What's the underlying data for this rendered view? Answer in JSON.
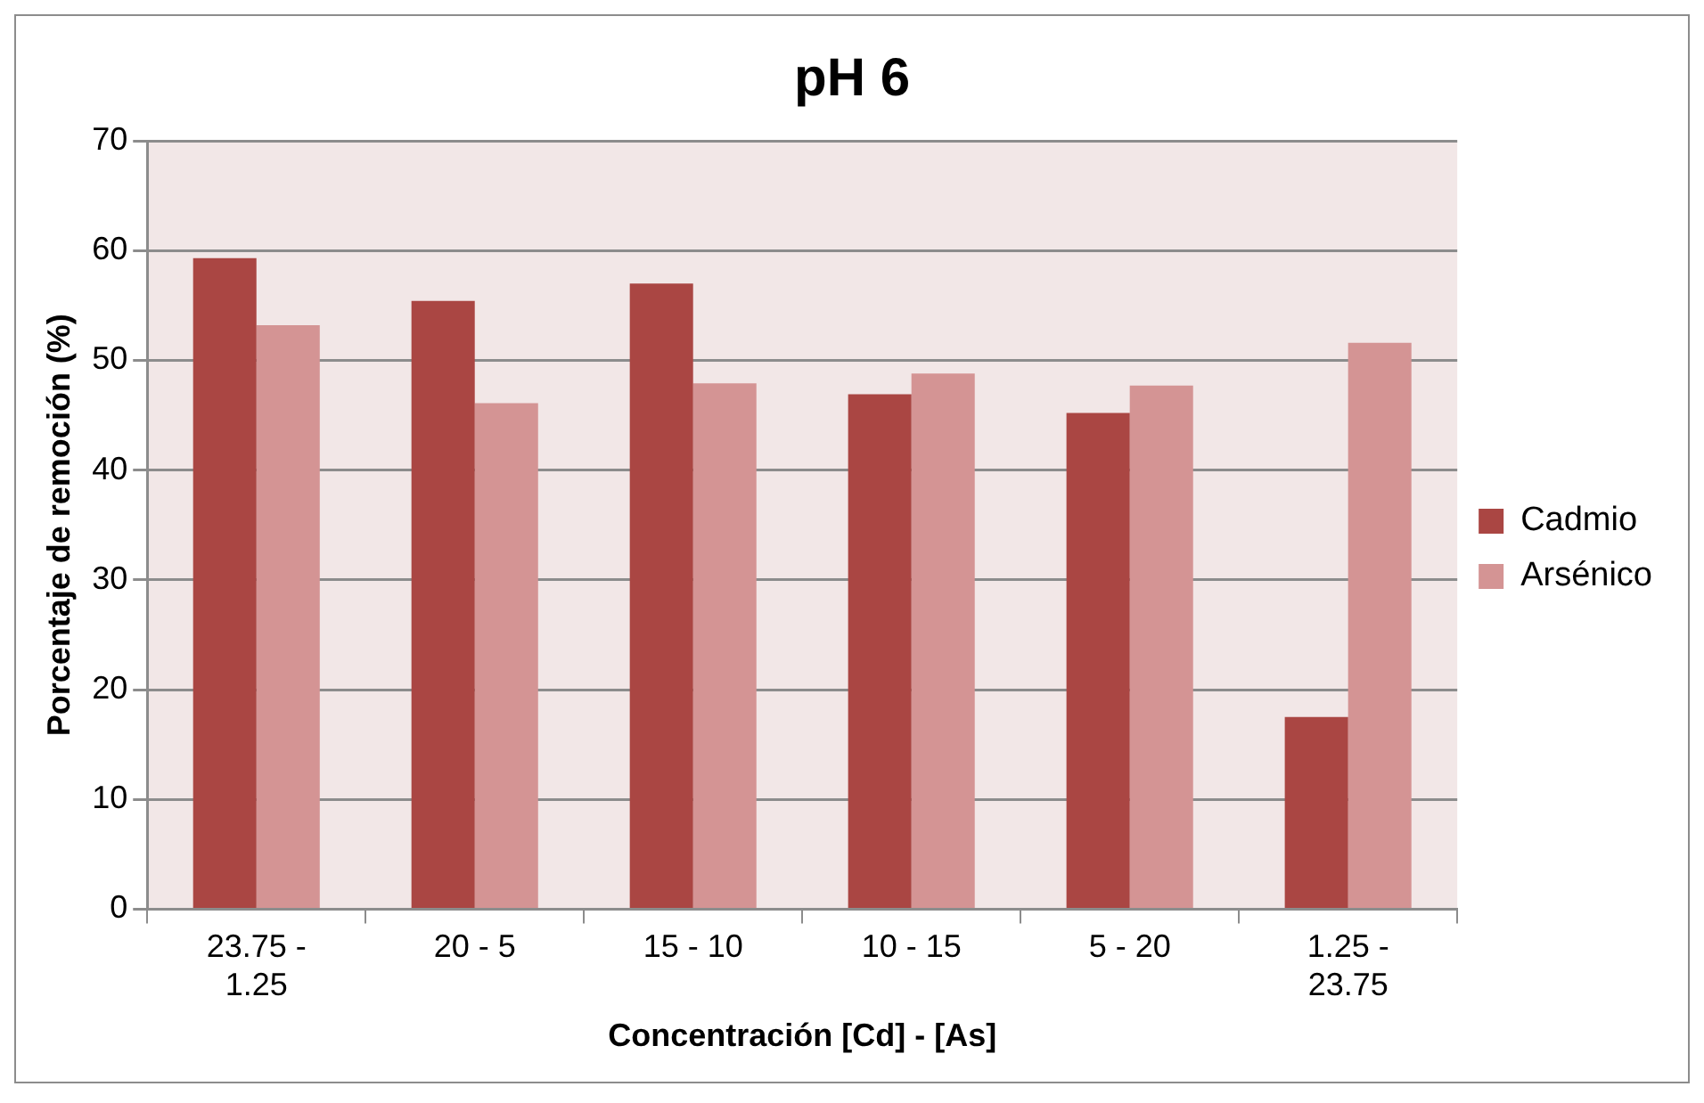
{
  "chart_data": {
    "type": "bar",
    "title": "pH 6",
    "xlabel": "Concentración [Cd] - [As]",
    "ylabel": "Porcentaje de remoción (%)",
    "categories": [
      "23.75 - 1.25",
      "20 - 5",
      "15 - 10",
      "10 - 15",
      "5 - 20",
      "1.25 - 23.75"
    ],
    "series": [
      {
        "name": "Cadmio",
        "color": "#aa4643",
        "values": [
          59.3,
          55.4,
          57.0,
          46.9,
          45.2,
          17.5
        ]
      },
      {
        "name": "Arsénico",
        "color": "#d49494",
        "values": [
          53.2,
          46.1,
          47.9,
          48.8,
          47.7,
          51.6
        ]
      }
    ],
    "ylim": [
      0,
      70
    ],
    "yticks": [
      0,
      10,
      20,
      30,
      40,
      50,
      60,
      70
    ],
    "grid": "y",
    "legend": "right"
  }
}
